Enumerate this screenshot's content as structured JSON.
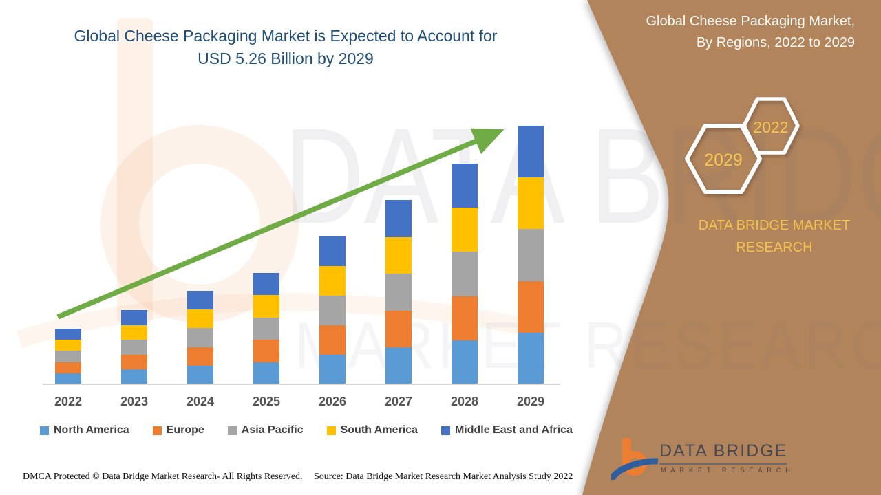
{
  "header": {
    "title_line1": "Global Cheese Packaging Market is Expected to Account for",
    "title_line2": "USD 5.26 Billion by 2029"
  },
  "panel": {
    "title_line1": "Global Cheese Packaging Market,",
    "title_line2": "By Regions, 2022 to 2029",
    "hexagon_front_label": "2029",
    "hexagon_back_label": "2022",
    "brand_line1": "DATA BRIDGE MARKET",
    "brand_line2": "RESEARCH",
    "background_color": "#B2845C",
    "accent_text_color": "#F2C24E"
  },
  "logo": {
    "name": "DATA BRIDGE",
    "subtitle": "MARKET RESEARCH"
  },
  "watermark": {
    "line1": "DATA BRIDGE",
    "line2": "MARKET RESEARCH"
  },
  "footer": {
    "dmca": "DMCA Protected © Data Bridge Market Research- All Rights Reserved.",
    "source": "Source: Data Bridge Market Research Market Analysis Study 2022"
  },
  "chart_data": {
    "type": "bar",
    "subtype": "stacked-vertical",
    "title": "Global Cheese Packaging Market, By Regions, 2022 to 2029",
    "unit": "USD Billion (estimated from bar heights; 2029 total labeled 5.26)",
    "categories": [
      "2022",
      "2023",
      "2024",
      "2025",
      "2026",
      "2027",
      "2028",
      "2029"
    ],
    "totals": [
      1.13,
      1.51,
      1.9,
      2.27,
      3.0,
      3.75,
      4.49,
      5.26
    ],
    "series": [
      {
        "name": "North America",
        "color": "#5B9BD5",
        "values": [
          0.227,
          0.302,
          0.38,
          0.453,
          0.601,
          0.75,
          0.898,
          1.052
        ]
      },
      {
        "name": "Europe",
        "color": "#ED7D31",
        "values": [
          0.227,
          0.302,
          0.38,
          0.453,
          0.601,
          0.75,
          0.898,
          1.052
        ]
      },
      {
        "name": "Asia Pacific",
        "color": "#A5A5A5",
        "values": [
          0.227,
          0.302,
          0.38,
          0.453,
          0.601,
          0.75,
          0.898,
          1.052
        ]
      },
      {
        "name": "South America",
        "color": "#FFC000",
        "values": [
          0.227,
          0.302,
          0.38,
          0.453,
          0.601,
          0.75,
          0.898,
          1.052
        ]
      },
      {
        "name": "Middle East and Africa",
        "color": "#4472C4",
        "values": [
          0.227,
          0.302,
          0.38,
          0.453,
          0.601,
          0.75,
          0.898,
          1.052
        ]
      }
    ],
    "legend_position": "bottom",
    "grid": false,
    "trend_arrow": {
      "present": true,
      "color": "#6FAC46",
      "direction": "up-right"
    },
    "xlabel": "",
    "ylabel": ""
  }
}
